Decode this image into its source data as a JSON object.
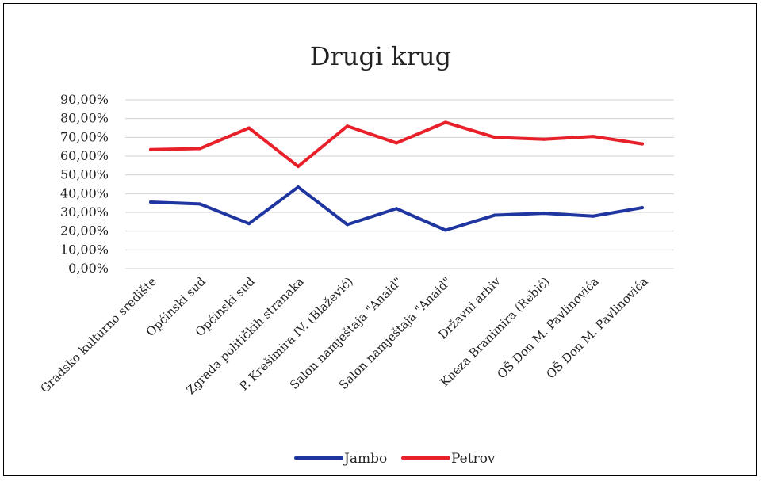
{
  "chart_data": {
    "type": "line",
    "title": "Drugi krug",
    "categories": [
      "Gradsko kulturno središte",
      "Općinski sud",
      "Općinski sud",
      "Zgrada političkih stranaka",
      "P. Krešimira IV. (Blažević)",
      "Salon namještaja \"Anaid\"",
      "Salon namještaja \"Anaid\"",
      "Državni arhiv",
      "Kneza Branimira  (Rebić)",
      "OŠ Don M. Pavlinovića",
      "OŠ Don M. Pavlinovića"
    ],
    "series": [
      {
        "name": "Jambo",
        "color": "#1f35a0",
        "values": [
          35.5,
          34.5,
          24.0,
          43.5,
          23.5,
          32.0,
          20.5,
          28.5,
          29.5,
          28.0,
          32.5
        ]
      },
      {
        "name": "Petrov",
        "color": "#e8202a",
        "values": [
          63.5,
          64.0,
          75.0,
          54.5,
          76.0,
          67.0,
          78.0,
          70.0,
          69.0,
          70.5,
          66.5
        ]
      }
    ],
    "yticks": [
      "0,00%",
      "10,00%",
      "20,00%",
      "30,00%",
      "40,00%",
      "50,00%",
      "60,00%",
      "70,00%",
      "80,00%",
      "90,00%"
    ],
    "ylim": [
      0,
      90
    ],
    "grid": true,
    "legend_position": "bottom"
  }
}
